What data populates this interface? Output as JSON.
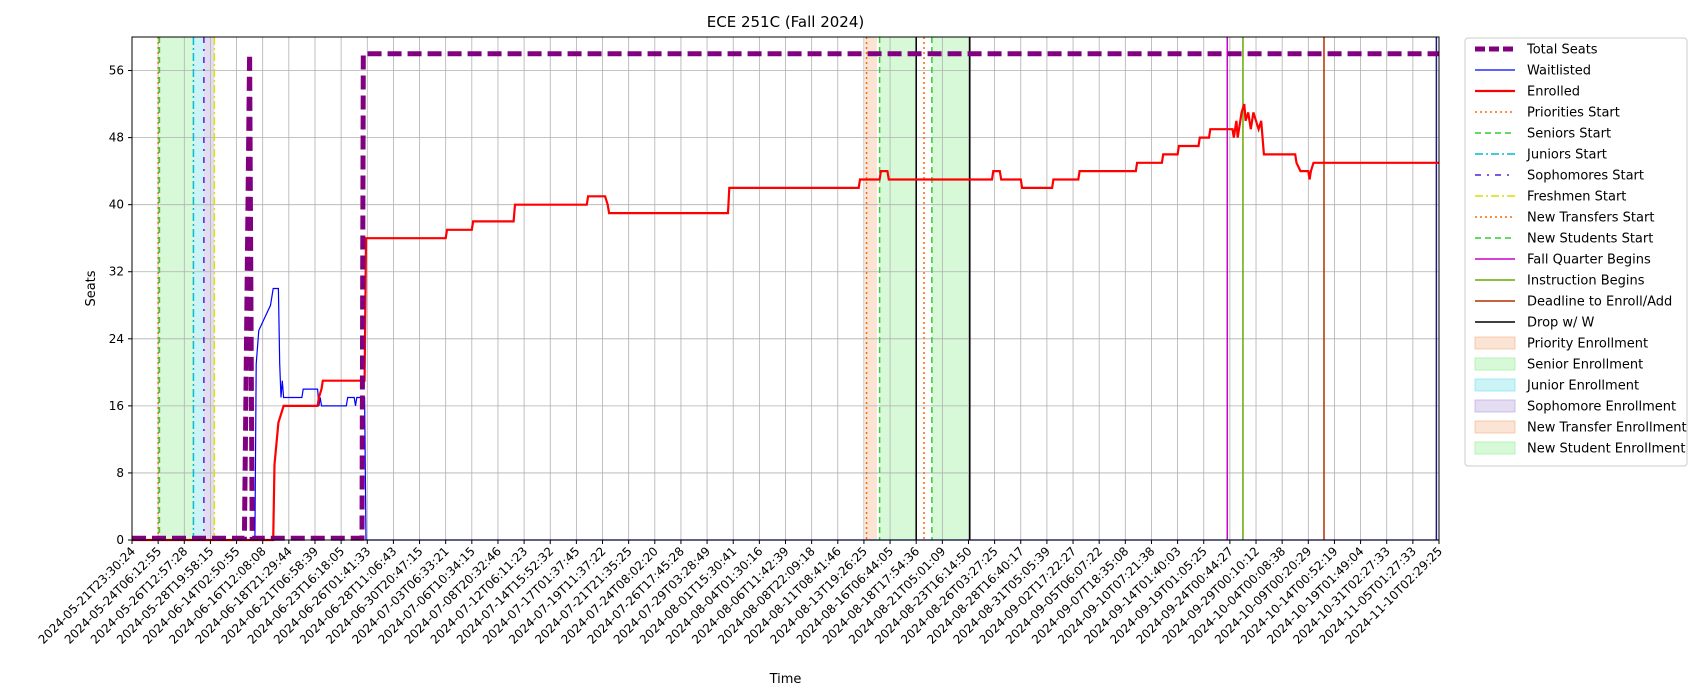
{
  "chart_data": {
    "type": "line",
    "title": "ECE 251C (Fall 2024)",
    "xlabel": "Time",
    "ylabel": "Seats",
    "ylim": [
      0,
      60
    ],
    "yticks": [
      0,
      8,
      16,
      24,
      32,
      40,
      48,
      56
    ],
    "grid": true,
    "legend_position": "outside-right",
    "xlim": [
      "2024-05-21T23:30:24",
      "2024-11-10T02:29:25"
    ],
    "xtick_labels": [
      "2024-05-21T23:30:24",
      "2024-05-24T06:12:55",
      "2024-05-26T12:57:28",
      "2024-05-28T19:58:15",
      "2024-06-14T02:50:55",
      "2024-06-16T12:08:08",
      "2024-06-18T21:29:44",
      "2024-06-21T06:58:39",
      "2024-06-23T16:18:05",
      "2024-06-26T01:41:33",
      "2024-06-28T11:06:43",
      "2024-06-30T20:47:15",
      "2024-07-03T06:33:21",
      "2024-07-06T10:34:15",
      "2024-07-08T20:32:46",
      "2024-07-12T06:11:23",
      "2024-07-14T15:52:32",
      "2024-07-17T01:37:45",
      "2024-07-19T11:37:22",
      "2024-07-21T21:35:25",
      "2024-07-24T08:02:20",
      "2024-07-26T17:45:28",
      "2024-07-29T03:28:49",
      "2024-08-01T15:30:41",
      "2024-08-04T01:30:16",
      "2024-08-06T11:42:39",
      "2024-08-08T22:09:18",
      "2024-08-11T08:41:46",
      "2024-08-13T19:26:25",
      "2024-08-16T06:44:05",
      "2024-08-18T17:54:36",
      "2024-08-21T05:01:09",
      "2024-08-23T16:14:50",
      "2024-08-26T03:27:25",
      "2024-08-28T16:40:17",
      "2024-08-31T05:05:39",
      "2024-09-02T17:22:27",
      "2024-09-05T06:07:22",
      "2024-09-07T18:35:08",
      "2024-09-10T07:21:38",
      "2024-09-14T01:40:03",
      "2024-09-19T01:05:25",
      "2024-09-24T00:44:27",
      "2024-09-29T00:10:12",
      "2024-10-04T00:08:38",
      "2024-10-09T00:20:29",
      "2024-10-14T00:52:19",
      "2024-10-19T01:49:04",
      "2024-10-31T02:27:33",
      "2024-11-05T01:27:33",
      "2024-11-10T02:29:25"
    ],
    "series": [
      {
        "name": "Total Seats",
        "color": "#800080",
        "style": "dashed-thick",
        "points": [
          [
            0,
            0.2
          ],
          [
            4.3,
            0.2
          ],
          [
            4.5,
            58
          ],
          [
            4.6,
            0.2
          ],
          [
            8.8,
            0.2
          ],
          [
            8.85,
            58
          ],
          [
            50,
            58
          ]
        ]
      },
      {
        "name": "Waitlisted",
        "color": "#0000ff",
        "style": "solid-thin",
        "points": [
          [
            0,
            0
          ],
          [
            4.7,
            0
          ],
          [
            4.75,
            21
          ],
          [
            4.85,
            25
          ],
          [
            5.0,
            26
          ],
          [
            5.3,
            28
          ],
          [
            5.4,
            30
          ],
          [
            5.6,
            30
          ],
          [
            5.65,
            21
          ],
          [
            5.7,
            17
          ],
          [
            5.75,
            19
          ],
          [
            5.8,
            17
          ],
          [
            6.5,
            17
          ],
          [
            6.55,
            18
          ],
          [
            7.1,
            18
          ],
          [
            7.15,
            16
          ],
          [
            7.2,
            17
          ],
          [
            7.25,
            16
          ],
          [
            8.2,
            16
          ],
          [
            8.25,
            17
          ],
          [
            8.5,
            17
          ],
          [
            8.55,
            16
          ],
          [
            8.6,
            17
          ],
          [
            8.9,
            17
          ],
          [
            8.95,
            0
          ],
          [
            50,
            0
          ]
        ]
      },
      {
        "name": "Enrolled",
        "color": "#ff0000",
        "style": "solid-thick",
        "points": [
          [
            0,
            0
          ],
          [
            5.4,
            0
          ],
          [
            5.45,
            9
          ],
          [
            5.6,
            14
          ],
          [
            5.7,
            15
          ],
          [
            5.8,
            16
          ],
          [
            7.1,
            16
          ],
          [
            7.15,
            17
          ],
          [
            7.25,
            18
          ],
          [
            7.3,
            19
          ],
          [
            8.9,
            19
          ],
          [
            8.95,
            36
          ],
          [
            12.0,
            36
          ],
          [
            12.05,
            37
          ],
          [
            13.0,
            37
          ],
          [
            13.05,
            38
          ],
          [
            14.6,
            38
          ],
          [
            14.65,
            40
          ],
          [
            17.4,
            40
          ],
          [
            17.45,
            41
          ],
          [
            18.1,
            41
          ],
          [
            18.2,
            40
          ],
          [
            18.25,
            39
          ],
          [
            22.8,
            39
          ],
          [
            22.85,
            42
          ],
          [
            27.8,
            42
          ],
          [
            27.85,
            43
          ],
          [
            28.6,
            43
          ],
          [
            28.65,
            44
          ],
          [
            28.9,
            44
          ],
          [
            28.95,
            43
          ],
          [
            32.9,
            43
          ],
          [
            32.95,
            44
          ],
          [
            33.2,
            44
          ],
          [
            33.25,
            43
          ],
          [
            34.0,
            43
          ],
          [
            34.05,
            42
          ],
          [
            35.2,
            42
          ],
          [
            35.25,
            43
          ],
          [
            35.3,
            43
          ],
          [
            36.2,
            43
          ],
          [
            36.25,
            44
          ],
          [
            38.4,
            44
          ],
          [
            38.45,
            45
          ],
          [
            39.4,
            45
          ],
          [
            39.45,
            46
          ],
          [
            40.0,
            46
          ],
          [
            40.05,
            47
          ],
          [
            40.8,
            47
          ],
          [
            40.85,
            48
          ],
          [
            41.2,
            48
          ],
          [
            41.25,
            49
          ],
          [
            42.1,
            49
          ],
          [
            42.15,
            48
          ],
          [
            42.25,
            50
          ],
          [
            42.3,
            48
          ],
          [
            42.4,
            50
          ],
          [
            42.45,
            51
          ],
          [
            42.55,
            52
          ],
          [
            42.6,
            50
          ],
          [
            42.7,
            51
          ],
          [
            42.8,
            49
          ],
          [
            42.9,
            51
          ],
          [
            43.0,
            50
          ],
          [
            43.1,
            49
          ],
          [
            43.2,
            50
          ],
          [
            43.3,
            46
          ],
          [
            44.5,
            46
          ],
          [
            44.55,
            45
          ],
          [
            44.7,
            44
          ],
          [
            45.0,
            44
          ],
          [
            45.05,
            43
          ],
          [
            45.1,
            44
          ],
          [
            45.2,
            45
          ],
          [
            50,
            45
          ]
        ]
      }
    ],
    "event_lines": [
      {
        "name": "Priorities Start",
        "color": "#ff6600",
        "style": "dotted",
        "x": 1.0
      },
      {
        "name": "Seniors Start",
        "color": "#33cc33",
        "style": "dashed",
        "x": 1.05
      },
      {
        "name": "Juniors Start",
        "color": "#00bcd4",
        "style": "dashdot",
        "x": 2.35
      },
      {
        "name": "Sophomores Start",
        "color": "#5a1fd6",
        "style": "dashdot-loose",
        "x": 2.75
      },
      {
        "name": "Freshmen Start",
        "color": "#dede00",
        "style": "dashdot",
        "x": 3.15
      },
      {
        "name": "New Transfers Start",
        "color": "#ff6600",
        "style": "dotted",
        "x": 28.1
      },
      {
        "name": "New Students Start",
        "color": "#33cc33",
        "style": "dashed",
        "x": 28.6
      },
      {
        "name": "New Transfers Start",
        "color": "#ff6600",
        "style": "dotted",
        "x": 30.3
      },
      {
        "name": "New Students Start",
        "color": "#33cc33",
        "style": "dashed",
        "x": 30.6
      },
      {
        "name": "Fall Quarter Begins",
        "color": "#cc00cc",
        "style": "solid",
        "x": 41.9
      },
      {
        "name": "Instruction Begins",
        "color": "#66aa00",
        "style": "solid",
        "x": 42.5
      },
      {
        "name": "Deadline to Enroll/Add",
        "color": "#b33000",
        "style": "solid",
        "x": 45.6
      },
      {
        "name": "Drop w/ W",
        "color": "#000000",
        "style": "solid",
        "x": 30.0
      },
      {
        "name": "Drop w/ W",
        "color": "#000000",
        "style": "solid",
        "x": 32.05
      },
      {
        "name": "Drop w/ W",
        "color": "#1a1a80",
        "style": "solid",
        "x": 49.9
      }
    ],
    "spans": [
      {
        "name": "Senior Enrollment",
        "color": "#90ee90",
        "x0": 1.05,
        "x1": 2.35
      },
      {
        "name": "Junior Enrollment",
        "color": "#6ee0e8",
        "x0": 2.35,
        "x1": 2.75
      },
      {
        "name": "Sophomore Enrollment",
        "color": "#b39ddb",
        "x0": 2.75,
        "x1": 3.15
      },
      {
        "name": "Priority Enrollment",
        "color": "#f4b183",
        "x0": 28.05,
        "x1": 28.5
      },
      {
        "name": "New Student Enrollment",
        "color": "#90ee90",
        "x0": 28.6,
        "x1": 30.0
      },
      {
        "name": "New Student Enrollment",
        "color": "#90ee90",
        "x0": 30.6,
        "x1": 32.05
      }
    ],
    "legend": [
      {
        "label": "Total Seats",
        "type": "line",
        "color": "#800080",
        "style": "dashed-thick"
      },
      {
        "label": "Waitlisted",
        "type": "line",
        "color": "#0000ff",
        "style": "solid-thin"
      },
      {
        "label": "Enrolled",
        "type": "line",
        "color": "#ff0000",
        "style": "solid-thick"
      },
      {
        "label": "Priorities Start",
        "type": "line",
        "color": "#ff6600",
        "style": "dotted"
      },
      {
        "label": "Seniors Start",
        "type": "line",
        "color": "#33cc33",
        "style": "dashed"
      },
      {
        "label": "Juniors Start",
        "type": "line",
        "color": "#00bcd4",
        "style": "dashdot"
      },
      {
        "label": "Sophomores Start",
        "type": "line",
        "color": "#5a1fd6",
        "style": "dashdot-loose"
      },
      {
        "label": "Freshmen Start",
        "type": "line",
        "color": "#dede00",
        "style": "dashdot"
      },
      {
        "label": "New Transfers Start",
        "type": "line",
        "color": "#ff6600",
        "style": "dotted"
      },
      {
        "label": "New Students Start",
        "type": "line",
        "color": "#33cc33",
        "style": "dashed"
      },
      {
        "label": "Fall Quarter Begins",
        "type": "line",
        "color": "#cc00cc",
        "style": "solid"
      },
      {
        "label": "Instruction Begins",
        "type": "line",
        "color": "#66aa00",
        "style": "solid"
      },
      {
        "label": "Deadline to Enroll/Add",
        "type": "line",
        "color": "#b33000",
        "style": "solid"
      },
      {
        "label": "Drop w/ W",
        "type": "line",
        "color": "#000000",
        "style": "solid"
      },
      {
        "label": "Priority Enrollment",
        "type": "patch",
        "color": "#f4b183"
      },
      {
        "label": "Senior Enrollment",
        "type": "patch",
        "color": "#90ee90"
      },
      {
        "label": "Junior Enrollment",
        "type": "patch",
        "color": "#6ee0e8"
      },
      {
        "label": "Sophomore Enrollment",
        "type": "patch",
        "color": "#b39ddb"
      },
      {
        "label": "New Transfer Enrollment",
        "type": "patch",
        "color": "#f4b183"
      },
      {
        "label": "New Student Enrollment",
        "type": "patch",
        "color": "#90ee90"
      }
    ]
  }
}
